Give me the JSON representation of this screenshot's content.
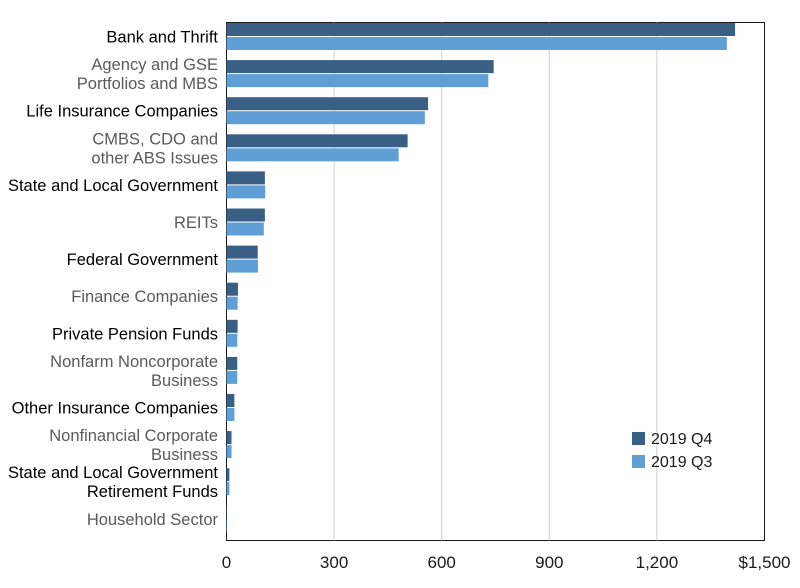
{
  "chart_data": {
    "type": "bar",
    "orientation": "horizontal",
    "categories": [
      "Bank and Thrift",
      "Agency and GSE\nPortfolios and MBS",
      "Life Insurance Companies",
      "CMBS, CDO and\nother ABS Issues",
      "State and Local Government",
      "REITs",
      "Federal Government",
      "Finance Companies",
      "Private Pension Funds",
      "Nonfarm Noncorporate\nBusiness",
      "Other Insurance Companies",
      "Nonfinancial Corporate\nBusiness",
      "State and Local Government\nRetirement Funds",
      "Household Sector"
    ],
    "category_label_color": [
      "#000000",
      "#5a5a5a",
      "#000000",
      "#5a5a5a",
      "#000000",
      "#5a5a5a",
      "#000000",
      "#5a5a5a",
      "#000000",
      "#5a5a5a",
      "#000000",
      "#5a5a5a",
      "#000000",
      "#5a5a5a"
    ],
    "series": [
      {
        "name": "2019 Q4",
        "color": "#3a5f85",
        "values": [
          1418,
          745,
          562,
          505,
          107,
          107,
          87,
          32,
          31,
          30,
          22,
          14,
          8,
          1
        ]
      },
      {
        "name": "2019 Q3",
        "color": "#5f9fd6",
        "values": [
          1395,
          730,
          553,
          480,
          108,
          104,
          88,
          31,
          30,
          30,
          22,
          14,
          8,
          1
        ]
      }
    ],
    "xlim": [
      0,
      1500
    ],
    "xticks": [
      0,
      300,
      600,
      900,
      1200,
      1500
    ],
    "xtick_labels": [
      "0",
      "300",
      "600",
      "900",
      "1,200",
      "$1,500"
    ],
    "grid": "vertical",
    "legend_position": "lower-right"
  }
}
